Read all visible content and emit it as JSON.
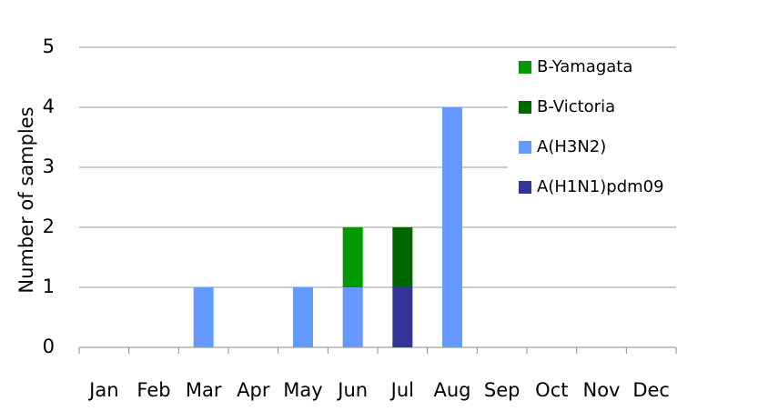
{
  "chart_data": {
    "type": "stacked_bar",
    "y_label": "Number of samples",
    "categories": [
      "Jan",
      "Feb",
      "Mar",
      "Apr",
      "May",
      "Jun",
      "Jul",
      "Aug",
      "Sep",
      "Oct",
      "Nov",
      "Dec"
    ],
    "series": [
      {
        "name": "B-Yamagata",
        "color": "#009900",
        "values": [
          0,
          0,
          0,
          0,
          0,
          1,
          0,
          0,
          0,
          0,
          0,
          0
        ]
      },
      {
        "name": "B-Victoria",
        "color": "#006600",
        "values": [
          0,
          0,
          0,
          0,
          0,
          0,
          1,
          0,
          0,
          0,
          0,
          0
        ]
      },
      {
        "name": "A(H3N2)",
        "color": "#6699ff",
        "values": [
          0,
          0,
          1,
          0,
          1,
          1,
          0,
          4,
          0,
          0,
          0,
          0
        ]
      },
      {
        "name": "A(H1N1)pdm09",
        "color": "#333399",
        "values": [
          0,
          0,
          0,
          0,
          0,
          0,
          1,
          0,
          0,
          0,
          0,
          0
        ]
      }
    ],
    "ylim": [
      0,
      5
    ],
    "yticks": [
      0,
      1,
      2,
      3,
      4,
      5
    ],
    "grid": true,
    "legend": "right"
  }
}
